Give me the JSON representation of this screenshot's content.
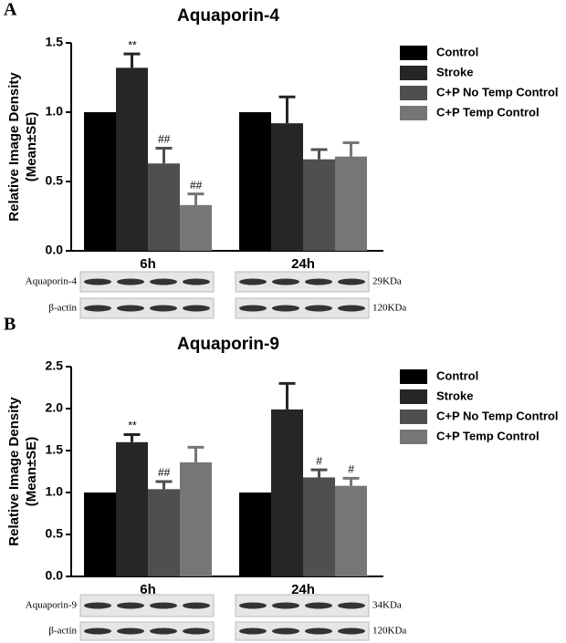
{
  "chart_data": [
    {
      "type": "bar",
      "panel": "A",
      "title": "Aquaporin-4",
      "ylabel": [
        "Relative Image Density",
        "(Mean±SE)"
      ],
      "categories": [
        "6h",
        "24h"
      ],
      "ylim": [
        0,
        1.5
      ],
      "yticks": [
        {
          "value": 0,
          "label": "0.0"
        },
        {
          "value": 0.5,
          "label": "0.5"
        },
        {
          "value": 1,
          "label": "1.0"
        },
        {
          "value": 1.5,
          "label": "1.5"
        }
      ],
      "series": [
        {
          "name": "Control",
          "color": "#000000",
          "values": [
            1.0,
            1.0
          ]
        },
        {
          "name": "Stroke",
          "color": "#262626",
          "values": [
            1.32,
            0.92
          ],
          "errors": [
            0.1,
            0.19
          ],
          "annotations": [
            "**",
            null
          ]
        },
        {
          "name": "C+P No Temp Control",
          "color": "#4f4f4f",
          "values": [
            0.63,
            0.66
          ],
          "errors": [
            0.11,
            0.07
          ],
          "annotations": [
            "##",
            null
          ]
        },
        {
          "name": "C+P Temp Control",
          "color": "#767676",
          "values": [
            0.33,
            0.68
          ],
          "errors": [
            0.08,
            0.1
          ],
          "annotations": [
            "##",
            null
          ]
        }
      ],
      "blot": [
        {
          "label": "Aquaporin-4",
          "size": "29KDa"
        },
        {
          "label": "β-actin",
          "size": "120KDa"
        }
      ]
    },
    {
      "type": "bar",
      "panel": "B",
      "title": "Aquaporin-9",
      "ylabel": [
        "Relative Image Density",
        "(Mean±SE)"
      ],
      "categories": [
        "6h",
        "24h"
      ],
      "ylim": [
        0,
        2.5
      ],
      "yticks": [
        {
          "value": 0,
          "label": "0.0"
        },
        {
          "value": 0.5,
          "label": "0.5"
        },
        {
          "value": 1,
          "label": "1.0"
        },
        {
          "value": 1.5,
          "label": "1.5"
        },
        {
          "value": 2,
          "label": "2.0"
        },
        {
          "value": 2.5,
          "label": "2.5"
        }
      ],
      "series": [
        {
          "name": "Control",
          "color": "#000000",
          "values": [
            1.0,
            1.0
          ]
        },
        {
          "name": "Stroke",
          "color": "#262626",
          "values": [
            1.6,
            1.99
          ],
          "errors": [
            0.09,
            0.31
          ],
          "annotations": [
            "**",
            null
          ]
        },
        {
          "name": "C+P No Temp Control",
          "color": "#4f4f4f",
          "values": [
            1.04,
            1.18
          ],
          "errors": [
            0.09,
            0.09
          ],
          "annotations": [
            "##",
            "#"
          ]
        },
        {
          "name": "C+P Temp Control",
          "color": "#767676",
          "values": [
            1.36,
            1.08
          ],
          "errors": [
            0.18,
            0.09
          ],
          "annotations": [
            null,
            "#"
          ]
        }
      ],
      "blot": [
        {
          "label": "Aquaporin-9",
          "size": "34KDa"
        },
        {
          "label": "β-actin",
          "size": "120KDa"
        }
      ]
    }
  ]
}
